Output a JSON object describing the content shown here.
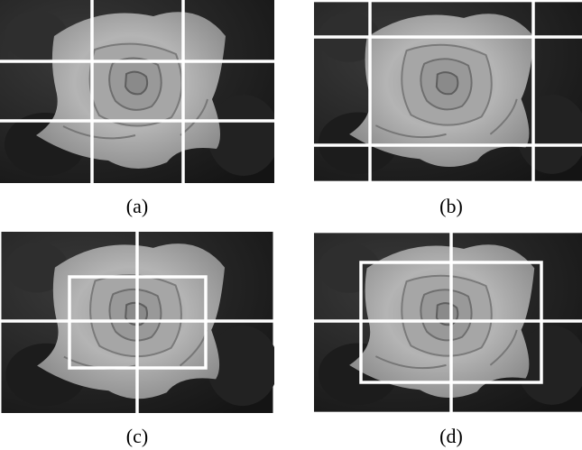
{
  "figure": {
    "captions": [
      "(a)",
      "(b)",
      "(c)",
      "(d)"
    ]
  }
}
